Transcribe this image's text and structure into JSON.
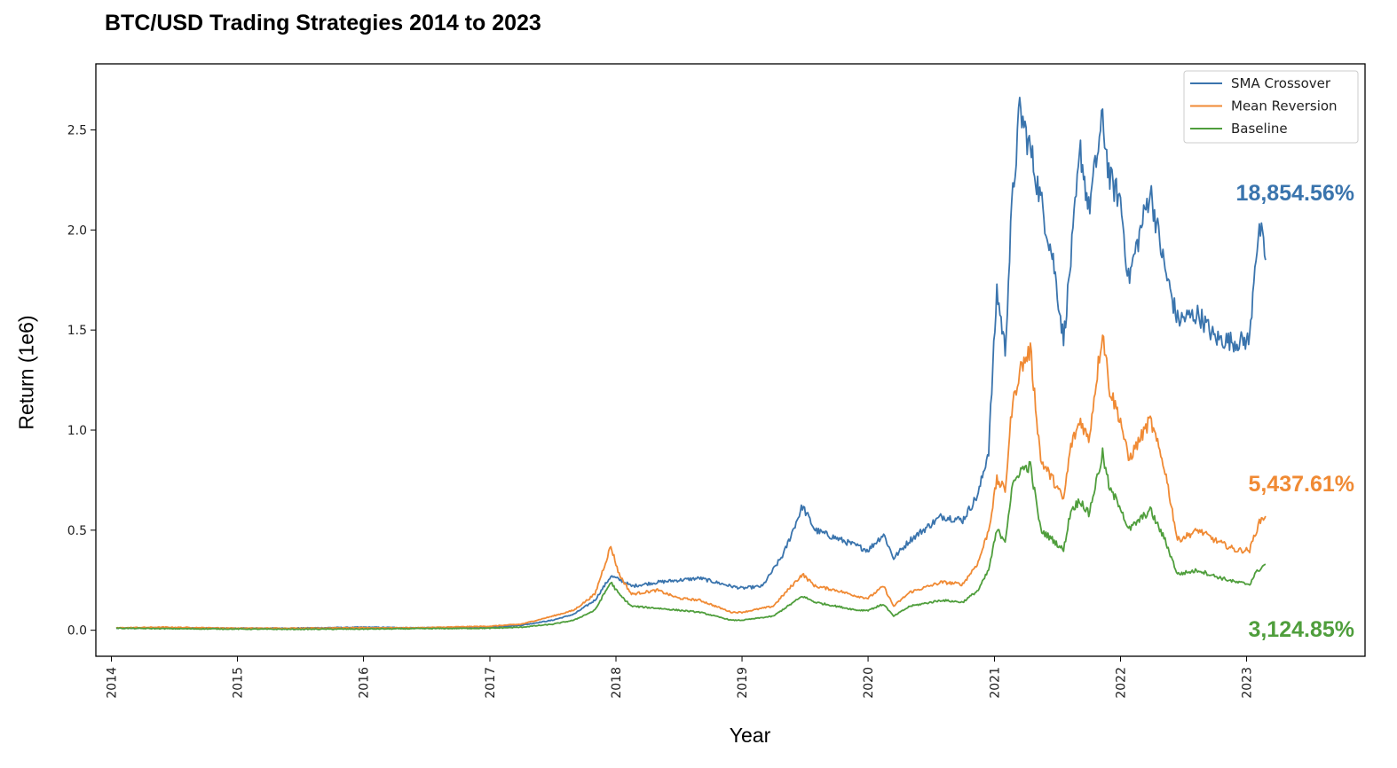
{
  "chart_data": {
    "type": "line",
    "title": "BTC/USD Trading Strategies 2014 to 2023",
    "xlabel": "Year",
    "ylabel": "Return (1e6)",
    "xlim": [
      "2013-11-17",
      "2023-12-10"
    ],
    "ylim": [
      -0.13,
      2.83
    ],
    "x_ticks": [
      "2014",
      "2015",
      "2016",
      "2017",
      "2018",
      "2019",
      "2020",
      "2021",
      "2022",
      "2023"
    ],
    "y_ticks": [
      "0.0",
      "0.5",
      "1.0",
      "1.5",
      "2.0",
      "2.5"
    ],
    "grid": false,
    "legend_position": "top-right",
    "series": [
      {
        "name": "SMA Crossover",
        "color": "#3a74ad",
        "final_label": "18,854.56%",
        "points": [
          [
            "2014-01-15",
            0.01
          ],
          [
            "2014-06-01",
            0.012
          ],
          [
            "2015-01-01",
            0.01
          ],
          [
            "2015-06-01",
            0.01
          ],
          [
            "2016-01-01",
            0.015
          ],
          [
            "2016-06-01",
            0.012
          ],
          [
            "2017-01-01",
            0.015
          ],
          [
            "2017-04-01",
            0.025
          ],
          [
            "2017-07-01",
            0.05
          ],
          [
            "2017-09-01",
            0.08
          ],
          [
            "2017-11-01",
            0.15
          ],
          [
            "2017-12-17",
            0.27
          ],
          [
            "2018-01-15",
            0.25
          ],
          [
            "2018-02-15",
            0.22
          ],
          [
            "2018-05-01",
            0.24
          ],
          [
            "2018-07-01",
            0.25
          ],
          [
            "2018-09-01",
            0.26
          ],
          [
            "2018-12-01",
            0.22
          ],
          [
            "2019-01-01",
            0.21
          ],
          [
            "2019-03-01",
            0.22
          ],
          [
            "2019-05-01",
            0.38
          ],
          [
            "2019-06-25",
            0.62
          ],
          [
            "2019-08-01",
            0.5
          ],
          [
            "2019-10-01",
            0.46
          ],
          [
            "2019-12-01",
            0.42
          ],
          [
            "2020-01-01",
            0.4
          ],
          [
            "2020-02-15",
            0.48
          ],
          [
            "2020-03-15",
            0.36
          ],
          [
            "2020-05-01",
            0.45
          ],
          [
            "2020-08-01",
            0.57
          ],
          [
            "2020-10-01",
            0.55
          ],
          [
            "2020-11-15",
            0.68
          ],
          [
            "2020-12-15",
            0.9
          ],
          [
            "2021-01-08",
            1.7
          ],
          [
            "2021-02-01",
            1.4
          ],
          [
            "2021-02-20",
            2.1
          ],
          [
            "2021-03-15",
            2.6
          ],
          [
            "2021-04-15",
            2.4
          ],
          [
            "2021-05-15",
            2.15
          ],
          [
            "2021-06-20",
            1.85
          ],
          [
            "2021-07-20",
            1.45
          ],
          [
            "2021-08-10",
            1.85
          ],
          [
            "2021-09-07",
            2.4
          ],
          [
            "2021-10-01",
            2.1
          ],
          [
            "2021-11-10",
            2.55
          ],
          [
            "2021-12-01",
            2.25
          ],
          [
            "2022-01-01",
            2.15
          ],
          [
            "2022-01-24",
            1.75
          ],
          [
            "2022-03-28",
            2.2
          ],
          [
            "2022-05-10",
            1.8
          ],
          [
            "2022-06-15",
            1.55
          ],
          [
            "2022-08-15",
            1.58
          ],
          [
            "2022-10-01",
            1.46
          ],
          [
            "2022-12-01",
            1.44
          ],
          [
            "2023-01-10",
            1.45
          ],
          [
            "2023-01-25",
            1.85
          ],
          [
            "2023-02-10",
            2.0
          ],
          [
            "2023-02-25",
            1.85
          ]
        ]
      },
      {
        "name": "Mean Reversion",
        "color": "#f08a34",
        "final_label": "5,437.61%",
        "points": [
          [
            "2014-01-15",
            0.012
          ],
          [
            "2014-06-01",
            0.015
          ],
          [
            "2015-01-01",
            0.01
          ],
          [
            "2015-06-01",
            0.01
          ],
          [
            "2016-01-01",
            0.012
          ],
          [
            "2016-06-01",
            0.012
          ],
          [
            "2017-01-01",
            0.02
          ],
          [
            "2017-04-01",
            0.03
          ],
          [
            "2017-07-01",
            0.07
          ],
          [
            "2017-09-01",
            0.1
          ],
          [
            "2017-11-01",
            0.18
          ],
          [
            "2017-12-17",
            0.42
          ],
          [
            "2018-01-10",
            0.28
          ],
          [
            "2018-02-15",
            0.18
          ],
          [
            "2018-05-01",
            0.2
          ],
          [
            "2018-07-01",
            0.16
          ],
          [
            "2018-09-01",
            0.15
          ],
          [
            "2018-12-01",
            0.09
          ],
          [
            "2019-01-01",
            0.09
          ],
          [
            "2019-04-01",
            0.12
          ],
          [
            "2019-06-25",
            0.28
          ],
          [
            "2019-08-01",
            0.22
          ],
          [
            "2019-10-01",
            0.2
          ],
          [
            "2019-12-01",
            0.17
          ],
          [
            "2020-01-01",
            0.16
          ],
          [
            "2020-02-15",
            0.22
          ],
          [
            "2020-03-15",
            0.12
          ],
          [
            "2020-05-01",
            0.19
          ],
          [
            "2020-08-01",
            0.24
          ],
          [
            "2020-10-01",
            0.23
          ],
          [
            "2020-11-15",
            0.34
          ],
          [
            "2020-12-15",
            0.5
          ],
          [
            "2021-01-08",
            0.75
          ],
          [
            "2021-02-01",
            0.7
          ],
          [
            "2021-02-20",
            1.1
          ],
          [
            "2021-03-15",
            1.3
          ],
          [
            "2021-04-15",
            1.4
          ],
          [
            "2021-05-15",
            0.85
          ],
          [
            "2021-06-20",
            0.75
          ],
          [
            "2021-07-20",
            0.65
          ],
          [
            "2021-08-10",
            0.92
          ],
          [
            "2021-09-07",
            1.05
          ],
          [
            "2021-10-01",
            0.95
          ],
          [
            "2021-11-10",
            1.5
          ],
          [
            "2021-12-01",
            1.2
          ],
          [
            "2022-01-01",
            1.05
          ],
          [
            "2022-01-24",
            0.85
          ],
          [
            "2022-03-28",
            1.05
          ],
          [
            "2022-05-10",
            0.8
          ],
          [
            "2022-06-15",
            0.45
          ],
          [
            "2022-08-15",
            0.5
          ],
          [
            "2022-10-01",
            0.45
          ],
          [
            "2022-12-01",
            0.4
          ],
          [
            "2023-01-10",
            0.4
          ],
          [
            "2023-01-25",
            0.48
          ],
          [
            "2023-02-10",
            0.55
          ],
          [
            "2023-02-25",
            0.57
          ]
        ]
      },
      {
        "name": "Baseline",
        "color": "#4f9e3c",
        "final_label": "3,124.85%",
        "points": [
          [
            "2014-01-15",
            0.01
          ],
          [
            "2014-06-01",
            0.008
          ],
          [
            "2015-01-01",
            0.006
          ],
          [
            "2015-06-01",
            0.005
          ],
          [
            "2016-01-01",
            0.006
          ],
          [
            "2016-06-01",
            0.008
          ],
          [
            "2017-01-01",
            0.01
          ],
          [
            "2017-04-01",
            0.015
          ],
          [
            "2017-07-01",
            0.03
          ],
          [
            "2017-09-01",
            0.05
          ],
          [
            "2017-11-01",
            0.1
          ],
          [
            "2017-12-17",
            0.24
          ],
          [
            "2018-01-10",
            0.18
          ],
          [
            "2018-02-15",
            0.12
          ],
          [
            "2018-05-01",
            0.11
          ],
          [
            "2018-07-01",
            0.1
          ],
          [
            "2018-09-01",
            0.09
          ],
          [
            "2018-12-01",
            0.05
          ],
          [
            "2019-01-01",
            0.05
          ],
          [
            "2019-04-01",
            0.07
          ],
          [
            "2019-06-25",
            0.17
          ],
          [
            "2019-08-01",
            0.14
          ],
          [
            "2019-10-01",
            0.12
          ],
          [
            "2019-12-01",
            0.1
          ],
          [
            "2020-01-01",
            0.1
          ],
          [
            "2020-02-15",
            0.13
          ],
          [
            "2020-03-15",
            0.07
          ],
          [
            "2020-05-01",
            0.12
          ],
          [
            "2020-08-01",
            0.15
          ],
          [
            "2020-10-01",
            0.14
          ],
          [
            "2020-11-15",
            0.2
          ],
          [
            "2020-12-15",
            0.3
          ],
          [
            "2021-01-08",
            0.5
          ],
          [
            "2021-02-01",
            0.45
          ],
          [
            "2021-02-20",
            0.7
          ],
          [
            "2021-03-15",
            0.8
          ],
          [
            "2021-04-15",
            0.82
          ],
          [
            "2021-05-15",
            0.5
          ],
          [
            "2021-06-20",
            0.45
          ],
          [
            "2021-07-20",
            0.4
          ],
          [
            "2021-08-10",
            0.6
          ],
          [
            "2021-09-07",
            0.65
          ],
          [
            "2021-10-01",
            0.58
          ],
          [
            "2021-11-10",
            0.88
          ],
          [
            "2021-12-01",
            0.7
          ],
          [
            "2022-01-01",
            0.62
          ],
          [
            "2022-01-24",
            0.5
          ],
          [
            "2022-03-28",
            0.6
          ],
          [
            "2022-05-10",
            0.45
          ],
          [
            "2022-06-15",
            0.28
          ],
          [
            "2022-08-15",
            0.3
          ],
          [
            "2022-10-01",
            0.27
          ],
          [
            "2022-12-01",
            0.24
          ],
          [
            "2023-01-10",
            0.23
          ],
          [
            "2023-01-25",
            0.28
          ],
          [
            "2023-02-10",
            0.31
          ],
          [
            "2023-02-25",
            0.33
          ]
        ]
      }
    ]
  }
}
